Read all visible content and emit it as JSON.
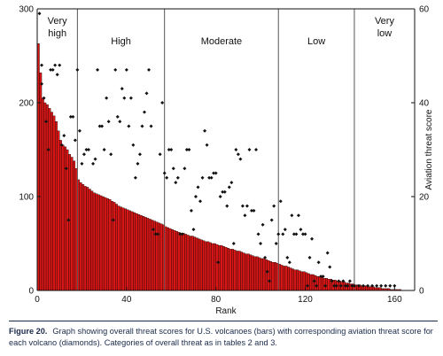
{
  "chart_data": {
    "type": "bar",
    "xlabel": "Rank",
    "ylabel": "",
    "y2label": "Aviation threat score",
    "xlim": [
      0,
      169
    ],
    "ylim": [
      0,
      300
    ],
    "y2lim": [
      0,
      60
    ],
    "xticks": [
      0,
      40,
      80,
      120,
      160
    ],
    "yticks": [
      0,
      100,
      200,
      300
    ],
    "y2ticks": [
      0,
      20,
      40,
      60
    ],
    "bar_color": "#d81616",
    "categories": [
      {
        "label": "Very\nhigh",
        "x_start": 0,
        "x_end": 18
      },
      {
        "label": "High",
        "x_start": 18,
        "x_end": 57
      },
      {
        "label": "Moderate",
        "x_start": 57,
        "x_end": 108
      },
      {
        "label": "Low",
        "x_start": 108,
        "x_end": 142
      },
      {
        "label": "Very\nlow",
        "x_start": 142,
        "x_end": 169
      }
    ],
    "bar_values": [
      263,
      232,
      205,
      200,
      198,
      194,
      190,
      186,
      180,
      170,
      160,
      155,
      153,
      150,
      145,
      142,
      138,
      130,
      118,
      115,
      113,
      111,
      110,
      108,
      106,
      104,
      103,
      102,
      101,
      100,
      99,
      98,
      97,
      95,
      94,
      92,
      90,
      89,
      88,
      87,
      86,
      85,
      84,
      83,
      82,
      81,
      80,
      79,
      78,
      77,
      76,
      75,
      74,
      73,
      72,
      71,
      70,
      68,
      67,
      66,
      65,
      64,
      63,
      62,
      61,
      61,
      60,
      59,
      58,
      58,
      57,
      56,
      55,
      54,
      53,
      52,
      52,
      51,
      50,
      50,
      49,
      48,
      48,
      47,
      46,
      45,
      44,
      44,
      43,
      42,
      42,
      41,
      40,
      39,
      39,
      38,
      37,
      36,
      36,
      35,
      34,
      34,
      33,
      32,
      31,
      30,
      30,
      29,
      28,
      27,
      26,
      26,
      25,
      24,
      23,
      22,
      22,
      21,
      20,
      20,
      19,
      18,
      17,
      17,
      16,
      15,
      15,
      14,
      13,
      13,
      12,
      12,
      11,
      11,
      10,
      10,
      9,
      9,
      8,
      8,
      7,
      7,
      6,
      6,
      6,
      5,
      5,
      5,
      4,
      4,
      4,
      3,
      3,
      3,
      2,
      2,
      2,
      2,
      1,
      1,
      1,
      1,
      1
    ],
    "aviation_scores": [
      [
        1,
        59
      ],
      [
        2,
        48
      ],
      [
        2,
        44
      ],
      [
        3,
        41
      ],
      [
        4,
        36
      ],
      [
        5,
        30
      ],
      [
        6,
        47
      ],
      [
        7,
        47
      ],
      [
        8,
        48
      ],
      [
        9,
        46
      ],
      [
        10,
        48
      ],
      [
        11,
        31
      ],
      [
        12,
        33
      ],
      [
        13,
        26
      ],
      [
        14,
        15
      ],
      [
        15,
        37
      ],
      [
        16,
        37
      ],
      [
        17,
        32
      ],
      [
        18,
        47
      ],
      [
        19,
        34
      ],
      [
        20,
        27
      ],
      [
        21,
        29
      ],
      [
        22,
        30
      ],
      [
        23,
        30
      ],
      [
        25,
        27
      ],
      [
        26,
        28
      ],
      [
        27,
        47
      ],
      [
        28,
        35
      ],
      [
        29,
        35
      ],
      [
        30,
        30
      ],
      [
        31,
        41
      ],
      [
        32,
        36
      ],
      [
        33,
        29
      ],
      [
        34,
        15
      ],
      [
        35,
        47
      ],
      [
        36,
        37
      ],
      [
        37,
        36
      ],
      [
        38,
        43
      ],
      [
        39,
        41
      ],
      [
        40,
        47
      ],
      [
        41,
        35
      ],
      [
        42,
        41
      ],
      [
        43,
        31
      ],
      [
        44,
        24
      ],
      [
        45,
        27
      ],
      [
        46,
        29
      ],
      [
        47,
        35
      ],
      [
        48,
        38
      ],
      [
        49,
        42
      ],
      [
        50,
        47
      ],
      [
        51,
        35
      ],
      [
        52,
        13
      ],
      [
        53,
        12
      ],
      [
        54,
        12
      ],
      [
        55,
        29
      ],
      [
        56,
        40
      ],
      [
        57,
        25
      ],
      [
        58,
        24
      ],
      [
        59,
        30
      ],
      [
        60,
        30
      ],
      [
        61,
        26
      ],
      [
        62,
        23
      ],
      [
        63,
        24
      ],
      [
        64,
        12
      ],
      [
        65,
        12
      ],
      [
        66,
        26
      ],
      [
        67,
        30
      ],
      [
        68,
        30
      ],
      [
        69,
        17
      ],
      [
        70,
        13
      ],
      [
        71,
        20
      ],
      [
        72,
        22
      ],
      [
        73,
        19
      ],
      [
        74,
        24
      ],
      [
        75,
        34
      ],
      [
        76,
        31
      ],
      [
        77,
        24
      ],
      [
        78,
        24
      ],
      [
        79,
        25
      ],
      [
        80,
        25
      ],
      [
        81,
        6
      ],
      [
        82,
        20
      ],
      [
        83,
        21
      ],
      [
        84,
        21
      ],
      [
        85,
        18
      ],
      [
        86,
        22
      ],
      [
        87,
        23
      ],
      [
        88,
        10
      ],
      [
        89,
        30
      ],
      [
        90,
        29
      ],
      [
        91,
        28
      ],
      [
        92,
        18
      ],
      [
        93,
        16
      ],
      [
        94,
        18
      ],
      [
        95,
        30
      ],
      [
        96,
        17
      ],
      [
        97,
        17
      ],
      [
        98,
        30
      ],
      [
        99,
        12
      ],
      [
        100,
        10
      ],
      [
        101,
        14
      ],
      [
        102,
        7
      ],
      [
        103,
        4
      ],
      [
        104,
        2
      ],
      [
        105,
        15
      ],
      [
        106,
        18
      ],
      [
        107,
        10
      ],
      [
        108,
        12
      ],
      [
        109,
        19
      ],
      [
        110,
        12
      ],
      [
        111,
        13
      ],
      [
        112,
        7
      ],
      [
        113,
        6
      ],
      [
        114,
        16
      ],
      [
        115,
        12
      ],
      [
        116,
        12
      ],
      [
        117,
        16
      ],
      [
        118,
        13
      ],
      [
        119,
        12
      ],
      [
        120,
        12
      ],
      [
        121,
        1
      ],
      [
        122,
        7
      ],
      [
        123,
        11
      ],
      [
        124,
        2
      ],
      [
        125,
        1
      ],
      [
        126,
        6
      ],
      [
        127,
        3
      ],
      [
        128,
        3
      ],
      [
        129,
        1
      ],
      [
        130,
        8
      ],
      [
        131,
        5
      ],
      [
        132,
        2
      ],
      [
        133,
        1
      ],
      [
        134,
        1
      ],
      [
        135,
        2
      ],
      [
        136,
        1
      ],
      [
        137,
        2
      ],
      [
        138,
        1
      ],
      [
        139,
        1
      ],
      [
        140,
        2
      ],
      [
        141,
        1
      ],
      [
        142,
        1
      ],
      [
        144,
        1
      ],
      [
        146,
        1
      ],
      [
        148,
        1
      ],
      [
        150,
        1
      ],
      [
        152,
        1
      ],
      [
        154,
        1
      ],
      [
        156,
        1
      ],
      [
        158,
        1
      ],
      [
        160,
        1
      ]
    ]
  },
  "caption": {
    "figure": "Figure 20.",
    "text": "Graph showing overall threat scores for U.S. volcanoes (bars) with corresponding aviation threat score for each volcano (diamonds). Categories of overall threat as in tables 2 and 3."
  }
}
